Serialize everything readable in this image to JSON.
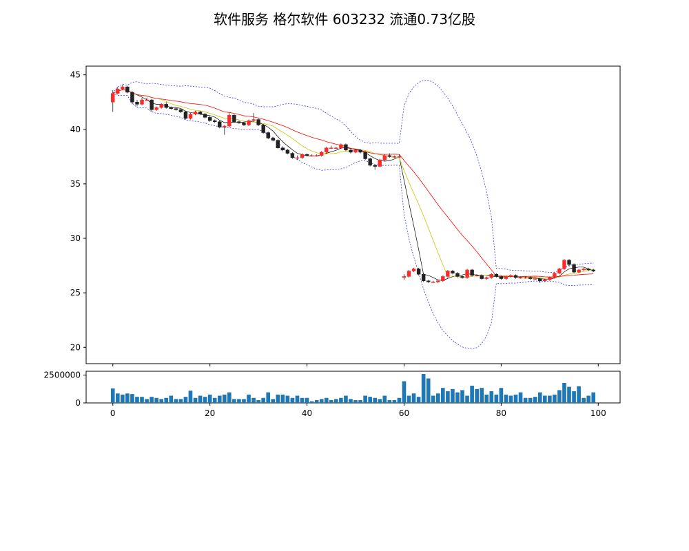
{
  "title": "软件服务 格尔软件 603232 流通0.73亿股",
  "colors": {
    "up": "#ff2a2a",
    "down": "#222222",
    "bollinger": "#3333ff",
    "ma_short": "#000000",
    "ma_mid": "#c8c800",
    "ma_long": "#ff0000",
    "volume": "#1f77b4"
  },
  "chart_data": [
    {
      "type": "candlestick",
      "name": "price",
      "x": [
        0,
        1,
        2,
        3,
        4,
        5,
        6,
        7,
        8,
        9,
        10,
        11,
        12,
        13,
        14,
        15,
        16,
        17,
        18,
        19,
        20,
        21,
        22,
        23,
        24,
        25,
        26,
        27,
        28,
        29,
        30,
        31,
        32,
        33,
        34,
        35,
        36,
        37,
        38,
        39,
        40,
        41,
        42,
        43,
        44,
        45,
        46,
        47,
        48,
        49,
        50,
        51,
        52,
        53,
        54,
        55,
        56,
        57,
        58,
        59,
        60,
        61,
        62,
        63,
        64,
        65,
        66,
        67,
        68,
        69,
        70,
        71,
        72,
        73,
        74,
        75,
        76,
        77,
        78,
        79,
        80,
        81,
        82,
        83,
        84,
        85,
        86,
        87,
        88,
        89,
        90,
        91,
        92,
        93,
        94,
        95,
        96,
        97,
        98,
        99
      ],
      "open": [
        42.5,
        43.3,
        43.7,
        43.9,
        43.4,
        42.5,
        42.3,
        42.7,
        42.7,
        41.8,
        42.0,
        42.3,
        42.0,
        41.9,
        41.8,
        41.6,
        41.0,
        41.4,
        41.6,
        41.4,
        41.1,
        40.8,
        40.7,
        40.2,
        40.3,
        41.3,
        40.7,
        40.6,
        40.4,
        40.8,
        40.9,
        40.4,
        39.7,
        39.2,
        39.0,
        38.3,
        38.1,
        37.8,
        37.4,
        37.4,
        37.7,
        37.6,
        37.6,
        37.6,
        37.9,
        38.3,
        38.3,
        38.3,
        38.6,
        38.1,
        37.9,
        38.1,
        37.9,
        37.3,
        36.7,
        36.6,
        37.2,
        37.6,
        37.5,
        37.5,
        26.4,
        26.5,
        27.0,
        27.2,
        26.7,
        26.1,
        26.0,
        26.0,
        26.1,
        26.5,
        27.0,
        26.8,
        26.5,
        26.4,
        27.1,
        26.6,
        26.6,
        26.3,
        26.4,
        26.7,
        26.5,
        26.3,
        26.5,
        26.6,
        26.4,
        26.4,
        26.4,
        26.3,
        26.3,
        26.1,
        26.2,
        26.4,
        26.8,
        27.2,
        28.0,
        27.6,
        26.9,
        27.1,
        27.2,
        27.1
      ],
      "close": [
        43.3,
        43.7,
        43.9,
        43.4,
        42.5,
        42.3,
        42.7,
        42.7,
        41.8,
        42.0,
        42.3,
        42.0,
        41.9,
        41.8,
        41.6,
        41.0,
        41.4,
        41.6,
        41.4,
        41.1,
        40.8,
        40.7,
        40.2,
        40.3,
        41.3,
        40.7,
        40.6,
        40.4,
        40.8,
        40.9,
        40.4,
        39.7,
        39.2,
        39.0,
        38.3,
        38.1,
        37.8,
        37.4,
        37.4,
        37.7,
        37.6,
        37.6,
        37.6,
        37.9,
        38.3,
        38.3,
        38.3,
        38.6,
        38.1,
        37.9,
        38.1,
        37.9,
        37.3,
        36.7,
        36.6,
        37.2,
        37.6,
        37.5,
        37.5,
        37.5,
        26.5,
        27.0,
        27.2,
        26.7,
        26.1,
        26.0,
        26.0,
        26.1,
        26.5,
        27.0,
        26.8,
        26.5,
        26.4,
        27.1,
        26.6,
        26.6,
        26.3,
        26.4,
        26.7,
        26.5,
        26.3,
        26.5,
        26.6,
        26.4,
        26.4,
        26.4,
        26.3,
        26.3,
        26.1,
        26.2,
        26.4,
        26.8,
        27.2,
        28.0,
        27.6,
        26.9,
        27.1,
        27.2,
        27.1,
        27.0
      ],
      "high": [
        43.6,
        43.9,
        44.1,
        44.0,
        43.5,
        42.7,
        42.9,
        42.9,
        42.8,
        42.1,
        42.4,
        42.5,
        42.1,
        42.0,
        41.9,
        41.7,
        41.5,
        41.7,
        41.7,
        41.5,
        41.2,
        40.9,
        40.8,
        40.4,
        41.5,
        41.4,
        40.8,
        40.7,
        40.9,
        41.5,
        41.0,
        40.5,
        39.8,
        39.3,
        39.1,
        38.4,
        38.2,
        37.9,
        37.6,
        37.8,
        37.8,
        37.7,
        37.7,
        38.0,
        38.4,
        38.5,
        38.4,
        38.7,
        38.7,
        38.2,
        38.2,
        38.2,
        38.0,
        37.4,
        36.8,
        37.3,
        37.7,
        37.8,
        37.6,
        37.7,
        26.7,
        27.1,
        27.3,
        27.3,
        26.8,
        26.2,
        26.1,
        26.2,
        26.6,
        27.1,
        27.1,
        26.9,
        26.6,
        27.2,
        27.2,
        26.7,
        26.7,
        26.5,
        26.8,
        26.8,
        26.6,
        26.6,
        26.7,
        26.7,
        26.5,
        26.5,
        26.5,
        26.4,
        26.4,
        26.3,
        26.5,
        26.9,
        27.3,
        28.1,
        28.1,
        27.7,
        27.2,
        27.3,
        27.3,
        27.2
      ],
      "low": [
        41.6,
        43.2,
        43.6,
        43.3,
        42.3,
        42.1,
        42.2,
        42.6,
        41.6,
        41.7,
        41.9,
        41.9,
        41.8,
        41.7,
        41.5,
        40.9,
        40.9,
        41.3,
        41.3,
        41.0,
        40.7,
        40.6,
        40.1,
        39.5,
        40.2,
        40.6,
        40.5,
        40.3,
        40.3,
        40.7,
        40.3,
        39.6,
        39.1,
        38.9,
        38.2,
        38.0,
        37.7,
        37.3,
        37.2,
        37.3,
        37.5,
        37.5,
        37.5,
        37.5,
        37.8,
        38.2,
        38.2,
        38.2,
        38.0,
        37.8,
        37.8,
        37.8,
        37.2,
        36.6,
        36.3,
        36.5,
        37.1,
        37.4,
        37.4,
        37.4,
        26.2,
        26.4,
        26.9,
        26.6,
        26.0,
        25.9,
        25.9,
        25.9,
        26.0,
        26.4,
        26.7,
        26.4,
        26.3,
        26.3,
        26.5,
        26.5,
        26.2,
        26.2,
        26.3,
        26.4,
        26.2,
        26.2,
        26.4,
        26.3,
        26.3,
        26.3,
        26.2,
        26.2,
        25.9,
        26.0,
        26.1,
        26.3,
        26.7,
        27.1,
        27.4,
        26.8,
        26.8,
        27.0,
        27.0,
        26.9
      ],
      "yticks": [
        20,
        25,
        30,
        35,
        40,
        45
      ],
      "ylim": [
        18.5,
        45.8
      ],
      "xlim": [
        -5.5,
        104.5
      ]
    },
    {
      "type": "bar",
      "name": "volume",
      "x": [
        0,
        1,
        2,
        3,
        4,
        5,
        6,
        7,
        8,
        9,
        10,
        11,
        12,
        13,
        14,
        15,
        16,
        17,
        18,
        19,
        20,
        21,
        22,
        23,
        24,
        25,
        26,
        27,
        28,
        29,
        30,
        31,
        32,
        33,
        34,
        35,
        36,
        37,
        38,
        39,
        40,
        41,
        42,
        43,
        44,
        45,
        46,
        47,
        48,
        49,
        50,
        51,
        52,
        53,
        54,
        55,
        56,
        57,
        58,
        59,
        60,
        61,
        62,
        63,
        64,
        65,
        66,
        67,
        68,
        69,
        70,
        71,
        72,
        73,
        74,
        75,
        76,
        77,
        78,
        79,
        80,
        81,
        82,
        83,
        84,
        85,
        86,
        87,
        88,
        89,
        90,
        91,
        92,
        93,
        94,
        95,
        96,
        97,
        98,
        99
      ],
      "values": [
        1300000,
        850000,
        750000,
        850000,
        800000,
        550000,
        550000,
        350000,
        550000,
        450000,
        350000,
        450000,
        650000,
        350000,
        350000,
        550000,
        1100000,
        450000,
        650000,
        550000,
        750000,
        450000,
        650000,
        750000,
        950000,
        350000,
        350000,
        350000,
        750000,
        450000,
        250000,
        450000,
        950000,
        350000,
        750000,
        750000,
        650000,
        450000,
        650000,
        450000,
        450000,
        150000,
        250000,
        350000,
        450000,
        250000,
        350000,
        450000,
        650000,
        350000,
        250000,
        250000,
        650000,
        550000,
        450000,
        350000,
        650000,
        250000,
        250000,
        450000,
        1950000,
        650000,
        850000,
        550000,
        2600000,
        2200000,
        650000,
        850000,
        1350000,
        1050000,
        1250000,
        950000,
        1150000,
        650000,
        1550000,
        1250000,
        1350000,
        750000,
        1050000,
        750000,
        1350000,
        750000,
        650000,
        750000,
        950000,
        450000,
        450000,
        550000,
        950000,
        650000,
        650000,
        750000,
        1150000,
        1800000,
        1450000,
        1050000,
        1500000,
        450000,
        650000,
        950000
      ],
      "ytick_labels": [
        "0",
        "2500000"
      ],
      "yticks": [
        0,
        2500000
      ],
      "ylim": [
        0,
        2850000
      ],
      "xticks": [
        0,
        20,
        40,
        60,
        80,
        100
      ],
      "xlim": [
        -5.5,
        104.5
      ]
    }
  ]
}
